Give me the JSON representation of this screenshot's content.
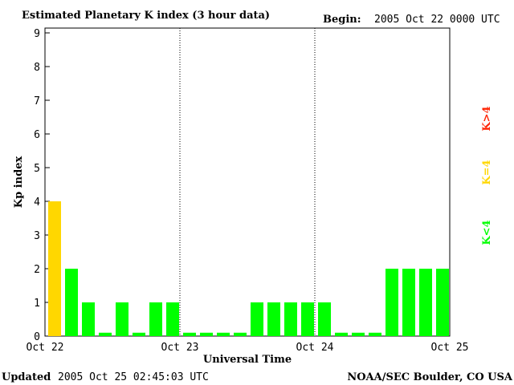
{
  "header": {
    "title": "Estimated Planetary K index (3 hour data)",
    "begin_label": "Begin:",
    "begin_value": "2005 Oct 22 0000 UTC"
  },
  "footer": {
    "updated_label": "Updated",
    "updated_value": "2005 Oct 25 02:45:03 UTC",
    "source": "NOAA/SEC Boulder, CO USA"
  },
  "legend": [
    {
      "label": "K<4",
      "color": "#00ff00"
    },
    {
      "label": "K=4",
      "color": "#ffd700"
    },
    {
      "label": "K>4",
      "color": "#ff2200"
    }
  ],
  "chart_data": {
    "type": "bar",
    "title": "Estimated Planetary K index (3 hour data)",
    "xlabel": "Universal Time",
    "ylabel": "Kp index",
    "ylim": [
      0,
      9
    ],
    "yticks": [
      "0",
      "1",
      "2",
      "3",
      "4",
      "5",
      "6",
      "7",
      "8",
      "9"
    ],
    "xticks": [
      "Oct 22",
      "Oct 23",
      "Oct 24",
      "Oct 25"
    ],
    "grid": "vertical dotted day separators",
    "values": [
      4,
      2,
      1,
      0,
      1,
      0,
      1,
      1,
      0,
      0,
      0,
      0,
      1,
      1,
      1,
      1,
      1,
      0,
      0,
      0,
      2,
      2,
      2,
      2
    ],
    "colors": {
      "below_4": "#00ff00",
      "equal_4": "#ffd700",
      "above_4": "#ff2200"
    }
  }
}
